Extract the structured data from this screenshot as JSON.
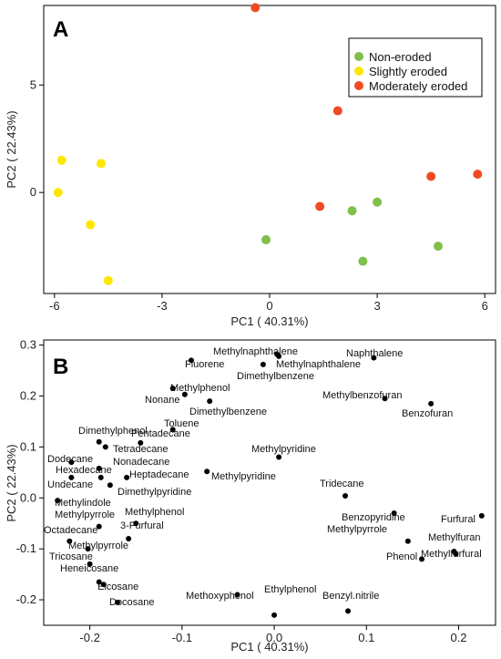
{
  "chart_data": [
    {
      "type": "scatter",
      "panel_label": "A",
      "xlabel": "PC1 ( 40.31%)",
      "ylabel": "PC2 ( 22.43%)",
      "xlim": [
        -6.3,
        6.3
      ],
      "ylim": [
        -4.7,
        8.7
      ],
      "x_ticks": [
        -6,
        -3,
        0,
        3,
        6
      ],
      "x_tick_labels": [
        "-6",
        "-3",
        "0",
        "3",
        "6"
      ],
      "y_ticks": [
        0,
        5
      ],
      "y_tick_labels": [
        "0",
        "5"
      ],
      "legend_position": "top-right",
      "colors": {
        "Non-eroded": "#7fbf4a",
        "Slightly eroded": "#ffe600",
        "Moderately eroded": "#f04a23"
      },
      "series": [
        {
          "name": "Non-eroded",
          "points": [
            [
              -0.1,
              -2.2
            ],
            [
              2.3,
              -0.85
            ],
            [
              3.0,
              -0.45
            ],
            [
              2.6,
              -3.2
            ],
            [
              4.7,
              -2.5
            ]
          ]
        },
        {
          "name": "Slightly eroded",
          "points": [
            [
              -5.8,
              1.5
            ],
            [
              -4.7,
              1.35
            ],
            [
              -5.9,
              0.0
            ],
            [
              -5.0,
              -1.5
            ],
            [
              -4.5,
              -4.1
            ]
          ]
        },
        {
          "name": "Moderately eroded",
          "points": [
            [
              -0.4,
              8.6
            ],
            [
              1.9,
              3.8
            ],
            [
              1.4,
              -0.65
            ],
            [
              4.5,
              0.75
            ],
            [
              5.8,
              0.85
            ]
          ]
        }
      ]
    },
    {
      "type": "scatter",
      "panel_label": "B",
      "xlabel": "PC1 ( 40.31%)",
      "ylabel": "PC2 ( 22.43%)",
      "xlim": [
        -0.25,
        0.24
      ],
      "ylim": [
        -0.25,
        0.31
      ],
      "x_ticks": [
        -0.2,
        -0.1,
        0.0,
        0.1,
        0.2
      ],
      "x_tick_labels": [
        "-0.2",
        "-0.1",
        "0.0",
        "0.1",
        "0.2"
      ],
      "y_ticks": [
        -0.2,
        -0.1,
        0.0,
        0.1,
        0.2,
        0.3
      ],
      "y_tick_labels": [
        "-0.2",
        "-0.1",
        "0.0",
        "0.1",
        "0.2",
        "0.3"
      ],
      "points": [
        {
          "label": "Methylnaphthalene",
          "x": 0.003,
          "y": 0.282
        },
        {
          "label": "Methylnaphthalene",
          "x": 0.005,
          "y": 0.278
        },
        {
          "label": "Fluorene",
          "x": -0.09,
          "y": 0.27
        },
        {
          "label": "Dimethylbenzene",
          "x": -0.012,
          "y": 0.262
        },
        {
          "label": "Naphthalene",
          "x": 0.108,
          "y": 0.275
        },
        {
          "label": "Methylphenol",
          "x": -0.11,
          "y": 0.215
        },
        {
          "label": "Nonane",
          "x": -0.097,
          "y": 0.203
        },
        {
          "label": "Dimethylbenzene",
          "x": -0.07,
          "y": 0.19
        },
        {
          "label": "Methylbenzofuran",
          "x": 0.12,
          "y": 0.195
        },
        {
          "label": "Benzofuran",
          "x": 0.17,
          "y": 0.185
        },
        {
          "label": "Toluene",
          "x": -0.11,
          "y": 0.134
        },
        {
          "label": "Pentadecane",
          "x": -0.145,
          "y": 0.108
        },
        {
          "label": "Dimethylphenol",
          "x": -0.19,
          "y": 0.11
        },
        {
          "label": "Tetradecane",
          "x": -0.183,
          "y": 0.1
        },
        {
          "label": "Methylpyridine",
          "x": 0.005,
          "y": 0.08
        },
        {
          "label": "Dodecane",
          "x": -0.22,
          "y": 0.07
        },
        {
          "label": "Hexadecane",
          "x": -0.22,
          "y": 0.04
        },
        {
          "label": "Nonadecane",
          "x": -0.19,
          "y": 0.058
        },
        {
          "label": "Heptadecane",
          "x": -0.16,
          "y": 0.04
        },
        {
          "label": "Undecane",
          "x": -0.188,
          "y": 0.04
        },
        {
          "label": "Methylpyridine",
          "x": -0.073,
          "y": 0.052
        },
        {
          "label": "Dimethylpyridine",
          "x": -0.178,
          "y": 0.025
        },
        {
          "label": "Tridecane",
          "x": 0.077,
          "y": 0.004
        },
        {
          "label": "Methylindole",
          "x": -0.235,
          "y": -0.005
        },
        {
          "label": "Methylphenol",
          "x": -0.15,
          "y": -0.05
        },
        {
          "label": "Methylpyrrole",
          "x": -0.19,
          "y": -0.056
        },
        {
          "label": "3-Furfural",
          "x": -0.158,
          "y": -0.08
        },
        {
          "label": "Benzopyridine",
          "x": 0.13,
          "y": -0.03
        },
        {
          "label": "Furfural",
          "x": 0.225,
          "y": -0.035
        },
        {
          "label": "Methylpyrrole",
          "x": 0.145,
          "y": -0.085
        },
        {
          "label": "Methylfuran",
          "x": 0.197,
          "y": -0.11
        },
        {
          "label": "Octadecane",
          "x": -0.222,
          "y": -0.085
        },
        {
          "label": "Methylpyrrole",
          "x": -0.202,
          "y": -0.1
        },
        {
          "label": "Phenol",
          "x": 0.16,
          "y": -0.12
        },
        {
          "label": "Methylfurfural",
          "x": 0.195,
          "y": -0.105
        },
        {
          "label": "Tricosane",
          "x": -0.2,
          "y": -0.13
        },
        {
          "label": "Heneicosane",
          "x": -0.19,
          "y": -0.165
        },
        {
          "label": "Eicosane",
          "x": -0.185,
          "y": -0.17
        },
        {
          "label": "Docosane",
          "x": -0.17,
          "y": -0.205
        },
        {
          "label": "Methoxyphenol",
          "x": -0.04,
          "y": -0.19
        },
        {
          "label": "Ethylphenol",
          "x": 0.0,
          "y": -0.23
        },
        {
          "label": "Benzyl.nitrile",
          "x": 0.08,
          "y": -0.222
        }
      ],
      "label_text": [
        "Methylnaphthalene",
        "Fluorene",
        "Methylnaphthalene",
        "Naphthalene",
        "Dimethylbenzene",
        "Methylphenol",
        "Methylbenzofuran",
        "Nonane",
        "Dimethylbenzene",
        "Benzofuran",
        "Toluene",
        "Dimethylphenol",
        "Pentadecane",
        "Tetradecane",
        "Methylpyridine",
        "Dodecane",
        "Nonadecane",
        "Hexadecane",
        "Heptadecane",
        "Undecane",
        "Methylpyridine",
        "Dimethylpyridine",
        "Tridecane",
        "Methylindole",
        "Methylphenol",
        "Methylpyrrole",
        "Benzopyridine",
        "Furfural",
        "3-Furfural",
        "Octadecane",
        "Methylpyrrole",
        "Methylfuran",
        "Methylpyrrole",
        "Phenol",
        "Methylfurfural",
        "Tricosane",
        "Heneicosane",
        "Eicosane",
        "Docosane",
        "Methoxyphenol",
        "Ethylphenol",
        "Benzyl.nitrile"
      ]
    }
  ]
}
